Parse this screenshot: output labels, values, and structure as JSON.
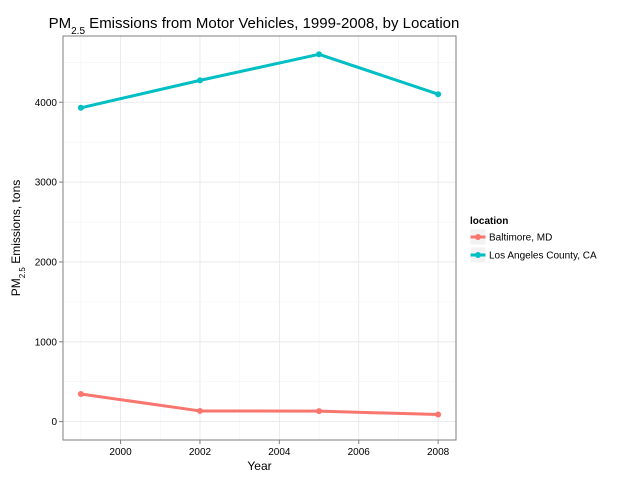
{
  "chart_data": {
    "type": "line",
    "title": {
      "main_prefix": "PM",
      "subscript": "2.5",
      "main_suffix": " Emissions from Motor Vehicles, 1999-2008, by Location"
    },
    "xlabel": "Year",
    "ylabel": {
      "prefix": "PM",
      "subscript": "2.5",
      "suffix": " Emissions, tons"
    },
    "x": [
      1999,
      2002,
      2005,
      2008
    ],
    "xlim": [
      1998.55,
      2008.45
    ],
    "ylim": [
      -230,
      4830
    ],
    "x_ticks": [
      2000,
      2002,
      2004,
      2006,
      2008
    ],
    "x_tick_labels": [
      "2000",
      "2002",
      "2004",
      "2006",
      "2008"
    ],
    "y_ticks": [
      0,
      1000,
      2000,
      3000,
      4000
    ],
    "y_tick_labels": [
      "0",
      "1000",
      "2000",
      "3000",
      "4000"
    ],
    "grid": true,
    "legend": {
      "title": "location",
      "position": "right"
    },
    "series": [
      {
        "name": "Baltimore, MD",
        "color": "#F8766D",
        "values": [
          346,
          134,
          131,
          89
        ]
      },
      {
        "name": "Los Angeles County, CA",
        "color": "#00BFC4",
        "values": [
          3931,
          4274,
          4601,
          4101
        ]
      }
    ]
  }
}
